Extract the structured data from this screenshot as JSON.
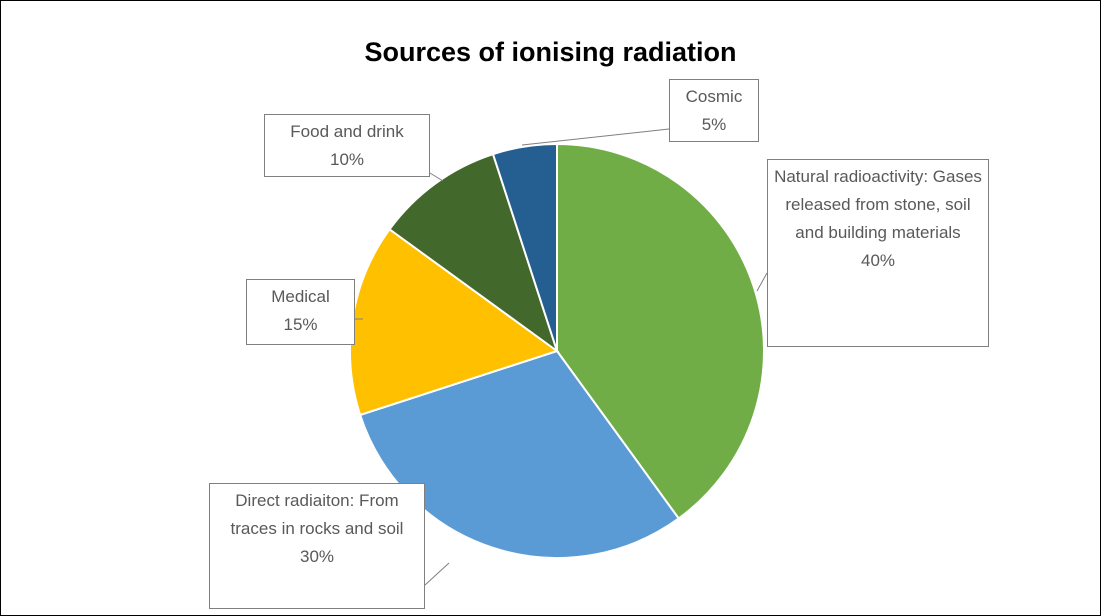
{
  "chart_data": {
    "type": "pie",
    "title": "Sources of ionising radiation",
    "categories": [
      "Natural radioactivity: Gases released from stone, soil and building materials",
      "Direct radiaiton: From traces in rocks and soil",
      "Medical",
      "Food and drink",
      "Cosmic"
    ],
    "values": [
      40,
      30,
      15,
      10,
      5
    ],
    "value_labels": [
      "40%",
      "30%",
      "15%",
      "10%",
      "5%"
    ],
    "colors": [
      "#70ad47",
      "#5b9bd5",
      "#ffc000",
      "#43682b",
      "#255e91"
    ]
  }
}
